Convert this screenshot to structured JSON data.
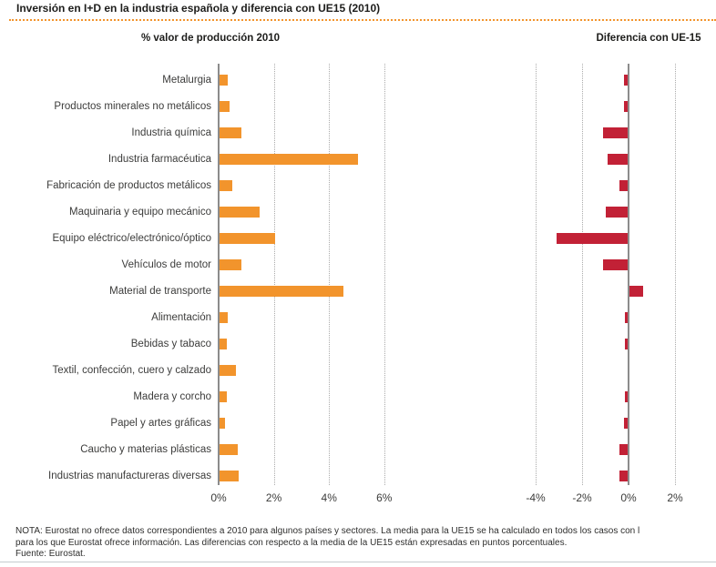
{
  "title": "Inversión en I+D en la industria española y diferencia con UE15 (2010)",
  "note": {
    "line1": "NOTA: Eurostat no ofrece datos correspondientes a 2010 para algunos países y sectores. La media para la UE15 se ha calculado en todos los casos con l",
    "line2": "para los que Eurostat ofrece información. Las diferencias con respecto a la media de la UE15 están expresadas en puntos porcentuales.",
    "line3": "Fuente: Eurostat."
  },
  "colors": {
    "orange": "#f2942c",
    "red": "#c22136",
    "axis_gray": "#8c8c8c",
    "grid_gray": "#ababab",
    "title_rule_orange": "#f2942c"
  },
  "chart_data": [
    {
      "type": "bar",
      "orientation": "horizontal",
      "title": "% valor de producción 2010",
      "categories": [
        "Metalurgia",
        "Productos minerales no metálicos",
        "Industria química",
        "Industria farmacéutica",
        "Fabricación de productos metálicos",
        "Maquinaria y equipo mecánico",
        "Equipo eléctrico/electrónico/óptico",
        "Vehículos de motor",
        "Material de transporte",
        "Alimentación",
        "Bebidas y tabaco",
        "Textil, confección, cuero y calzado",
        "Madera y corcho",
        "Papel y artes gráficas",
        "Caucho y materias plásticas",
        "Industrias manufactureras diversas"
      ],
      "values": [
        0.3,
        0.35,
        0.8,
        5.0,
        0.45,
        1.45,
        2.0,
        0.8,
        4.5,
        0.3,
        0.25,
        0.6,
        0.25,
        0.2,
        0.65,
        0.7
      ],
      "xticks": [
        "0%",
        "2%",
        "4%",
        "6%"
      ],
      "xtick_values": [
        0,
        2,
        4,
        6
      ],
      "xlim": [
        0,
        7
      ],
      "grid": "vertical-dotted",
      "legend": "none",
      "bar_color": "#f2942c"
    },
    {
      "type": "bar",
      "orientation": "horizontal",
      "title": "Diferencia con UE-15",
      "categories": [
        "Metalurgia",
        "Productos minerales no metálicos",
        "Industria química",
        "Industria farmacéutica",
        "Fabricación de productos metálicos",
        "Maquinaria y equipo mecánico",
        "Equipo eléctrico/electrónico/óptico",
        "Vehículos de motor",
        "Material de transporte",
        "Alimentación",
        "Bebidas y tabaco",
        "Textil, confección, cuero y calzado",
        "Madera y corcho",
        "Papel y artes gráficas",
        "Caucho y materias plásticas",
        "Industrias manufactureras diversas"
      ],
      "values": [
        -0.2,
        -0.2,
        -1.1,
        -0.9,
        -0.4,
        -1.0,
        -3.1,
        -1.1,
        0.6,
        -0.15,
        -0.15,
        0.0,
        -0.15,
        -0.2,
        -0.4,
        -0.4
      ],
      "xticks": [
        "-4%",
        "-2%",
        "0%",
        "2%"
      ],
      "xtick_values": [
        -4,
        -2,
        0,
        2
      ],
      "xlim": [
        -6.3,
        3.7
      ],
      "grid": "vertical-dotted",
      "legend": "none",
      "bar_color": "#c22136",
      "units": "puntos porcentuales"
    }
  ]
}
